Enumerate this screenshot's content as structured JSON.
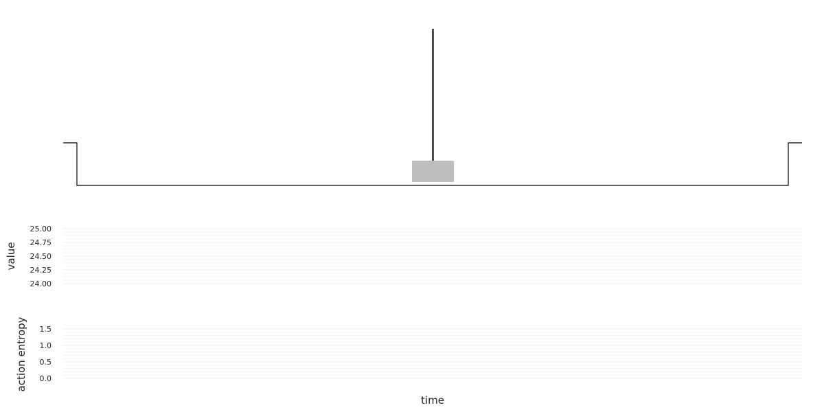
{
  "chart_data": [
    {
      "type": "line",
      "panel": "environment",
      "title": "",
      "xlabel": "",
      "ylabel": "",
      "elements": {
        "track_line": "flat baseline with raised ends at start and end",
        "agent_box": "grey rectangle at center of track",
        "pole": "vertical black line rising from box"
      },
      "colors": {
        "track": "#000000",
        "box": "#bdbdbd",
        "pole": "#000000"
      }
    },
    {
      "type": "line",
      "panel": "value",
      "ylabel": "value",
      "yticks": [
        "25.00",
        "24.75",
        "24.50",
        "24.25",
        "24.00"
      ],
      "ylim": [
        24.0,
        25.0
      ],
      "grid": true,
      "series": []
    },
    {
      "type": "line",
      "panel": "action_entropy",
      "ylabel": "action entropy",
      "yticks": [
        "1.5",
        "1.0",
        "0.5",
        "0.0"
      ],
      "ylim": [
        0.0,
        1.6
      ],
      "grid": true,
      "series": []
    }
  ],
  "xlabel": "time"
}
